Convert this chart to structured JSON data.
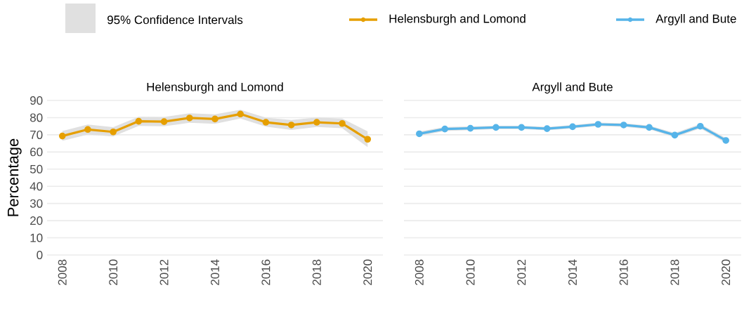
{
  "chart_data": [
    {
      "type": "line",
      "title": "Helensburgh and Lomond",
      "ylabel": "Percentage",
      "x": [
        2008,
        2009,
        2010,
        2011,
        2012,
        2013,
        2014,
        2015,
        2016,
        2017,
        2018,
        2019,
        2020
      ],
      "series": [
        {
          "name": "Helensburgh and Lomond",
          "color": "#e69f00",
          "values": [
            69.3,
            73.1,
            71.7,
            77.9,
            77.7,
            79.8,
            79.2,
            82.1,
            77.3,
            75.7,
            77.3,
            76.6,
            67.4
          ],
          "lower": [
            66.5,
            70.2,
            69,
            75.2,
            75,
            77,
            76.4,
            79.5,
            74.8,
            72.8,
            74.6,
            73.8,
            62.8
          ],
          "upper": [
            72.2,
            76,
            74.5,
            80.5,
            80.4,
            82.5,
            81.9,
            84.6,
            80,
            78.6,
            80.1,
            79.5,
            72
          ]
        }
      ],
      "annotations": [
        "95% Confidence Intervals"
      ],
      "xlim": [
        2007.4,
        2020.6
      ],
      "ylim": [
        0,
        90
      ],
      "xticks": [
        2008,
        2010,
        2012,
        2014,
        2016,
        2018,
        2020
      ],
      "yticks": [
        0,
        10,
        20,
        30,
        40,
        50,
        60,
        70,
        80,
        90
      ],
      "grid": "y",
      "legend": "top",
      "marker": "circle",
      "line_style": "solid"
    },
    {
      "type": "line",
      "title": "Argyll and Bute",
      "x": [
        2008,
        2009,
        2010,
        2011,
        2012,
        2013,
        2014,
        2015,
        2016,
        2017,
        2018,
        2019,
        2020
      ],
      "series": [
        {
          "name": "Argyll and Bute",
          "color": "#56b4e9",
          "values": [
            70.6,
            73.4,
            73.8,
            74.3,
            74.3,
            73.6,
            74.7,
            76.1,
            75.7,
            74.3,
            69.8,
            75,
            66.7
          ],
          "lower": [
            69.3,
            72.2,
            72.7,
            73.3,
            73.3,
            72.6,
            73.7,
            75.1,
            74.7,
            73.2,
            68.5,
            73.7,
            65.3
          ],
          "upper": [
            71.9,
            74.6,
            74.9,
            75.3,
            75.3,
            74.6,
            75.7,
            77.1,
            76.7,
            75.4,
            71.1,
            76.3,
            68.1
          ]
        }
      ],
      "xlim": [
        2007.4,
        2020.6
      ],
      "ylim": [
        0,
        90
      ],
      "xticks": [
        2008,
        2010,
        2012,
        2014,
        2016,
        2018,
        2020
      ],
      "yticks": [
        0,
        10,
        20,
        30,
        40,
        50,
        60,
        70,
        80,
        90
      ],
      "grid": "y",
      "legend": "top",
      "marker": "circle",
      "line_style": "solid",
      "tick_labels": "x"
    }
  ]
}
